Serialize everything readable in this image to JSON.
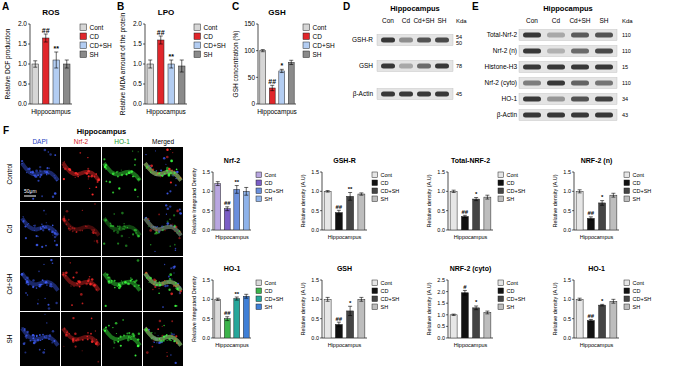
{
  "chart_data": [
    {
      "type": "bar",
      "panel_label": "A",
      "title": "ROS",
      "y_label": "Relative DCF production",
      "x_label": "Hippocampus",
      "categories": [
        "Cont",
        "CD",
        "CD+SH",
        "SH"
      ],
      "values": [
        1.0,
        1.65,
        1.1,
        1.0
      ],
      "errors": [
        0.08,
        0.1,
        0.2,
        0.1
      ],
      "significance": [
        null,
        "##",
        "**",
        null
      ],
      "colors": [
        "#d6d6d6",
        "#e0262b",
        "#b3cdf2",
        "#8a8a8a"
      ],
      "ylim": [
        0,
        2
      ],
      "yticks": [
        {
          "value": 0,
          "label": "0.0"
        },
        0.5,
        {
          "value": 1,
          "label": "1.0"
        },
        1.5,
        {
          "value": 2,
          "label": "2.0"
        }
      ],
      "legend": "right",
      "tick_labels": "y",
      "grid": false
    },
    {
      "type": "bar",
      "panel_label": "B",
      "title": "LPO",
      "y_label": "Relative MDA amount of the protein",
      "x_label": "Hippocampus",
      "categories": [
        "Cont",
        "CD",
        "CD+SH",
        "SH"
      ],
      "values": [
        1.0,
        1.6,
        1.0,
        0.95
      ],
      "errors": [
        0.1,
        0.1,
        0.1,
        0.15
      ],
      "significance": [
        null,
        "##",
        "**",
        null
      ],
      "colors": [
        "#d6d6d6",
        "#e0262b",
        "#b3cdf2",
        "#8a8a8a"
      ],
      "ylim": [
        0,
        2
      ],
      "yticks": [
        {
          "value": 0,
          "label": "0.0"
        },
        0.5,
        {
          "value": 1,
          "label": "1.0"
        },
        1.5,
        {
          "value": 2,
          "label": "2.0"
        }
      ],
      "legend": "right",
      "tick_labels": "y",
      "grid": false
    },
    {
      "type": "bar",
      "panel_label": "C",
      "title": "GSH",
      "y_label": "GSH concentration (%)",
      "x_label": "Hippocampus",
      "categories": [
        "Cont",
        "CD",
        "CD+SH",
        "SH"
      ],
      "values": [
        100,
        30,
        62,
        78
      ],
      "errors": [
        2,
        5,
        3,
        4
      ],
      "significance": [
        null,
        "##",
        "*",
        null
      ],
      "colors": [
        "#d6d6d6",
        "#e0262b",
        "#b3cdf2",
        "#8a8a8a"
      ],
      "ylim": [
        0,
        150
      ],
      "yticks": [
        0,
        50,
        100,
        150
      ],
      "legend": "right",
      "tick_labels": "y",
      "grid": false
    },
    {
      "type": "bar",
      "title": "Nrf-2",
      "y_label": "Relative Integrated Density",
      "x_label": "Hippocampus",
      "categories": [
        "Cont",
        "CD",
        "CD+SH",
        "SH"
      ],
      "values": [
        1.2,
        0.55,
        1.05,
        1.0
      ],
      "errors": [
        0.05,
        0.05,
        0.1,
        0.1
      ],
      "significance": [
        null,
        "##",
        "**",
        null
      ],
      "colors": [
        "#b8a6e0",
        "#7b5ec6",
        "#6a8fdc",
        "#8fb3ea"
      ],
      "ylim": [
        0,
        1.5
      ],
      "yticks": [
        {
          "value": 0,
          "label": "0.0"
        },
        0.5,
        {
          "value": 1,
          "label": "1.0"
        },
        1.5
      ],
      "legend": "right",
      "tick_labels": "y",
      "grid": false
    },
    {
      "type": "bar",
      "title": "HO-1",
      "y_label": "Relative Integrated Density",
      "x_label": "Hippocampus",
      "categories": [
        "Cont",
        "CD",
        "CD+SH",
        "SH"
      ],
      "values": [
        1.0,
        0.5,
        1.02,
        1.08
      ],
      "errors": [
        0.03,
        0.05,
        0.04,
        0.05
      ],
      "significance": [
        null,
        "##",
        "**",
        null
      ],
      "colors": [
        "#d9d9d9",
        "#3cb44b",
        "#26a69a",
        "#3f7fd6"
      ],
      "ylim": [
        0,
        1.5
      ],
      "yticks": [
        {
          "value": 0,
          "label": "0.0"
        },
        0.5,
        {
          "value": 1,
          "label": "1.0"
        },
        1.5
      ],
      "legend": "right",
      "tick_labels": "y",
      "grid": false
    },
    {
      "type": "bar",
      "title": "GSH-R",
      "y_label": "Relative density (A.U)",
      "x_label": "Hippocampus",
      "categories": [
        "Cont",
        "CD",
        "CD+SH",
        "SH"
      ],
      "values": [
        1.0,
        0.45,
        0.87,
        0.93
      ],
      "errors": [
        0.02,
        0.06,
        0.1,
        0.03
      ],
      "significance": [
        null,
        "##",
        "**",
        null
      ],
      "colors": [
        "#e6e6e6",
        "#111111",
        "#444444",
        "#bdbdbd"
      ],
      "ylim": [
        0,
        1.5
      ],
      "yticks": [
        {
          "value": 0,
          "label": "0.0"
        },
        0.5,
        {
          "value": 1,
          "label": "1.0"
        },
        1.5
      ],
      "legend": "right",
      "tick_labels": "y",
      "grid": false
    },
    {
      "type": "bar",
      "title": "Total-NRF-2",
      "y_label": "Relative density (A.U)",
      "x_label": "Hippocampus",
      "categories": [
        "Cont",
        "CD",
        "CD+SH",
        "SH"
      ],
      "values": [
        1.0,
        0.35,
        0.8,
        0.85
      ],
      "errors": [
        0.03,
        0.03,
        0.04,
        0.05
      ],
      "significance": [
        null,
        "##",
        "*",
        null
      ],
      "colors": [
        "#e6e6e6",
        "#111111",
        "#444444",
        "#bdbdbd"
      ],
      "ylim": [
        0,
        1.5
      ],
      "yticks": [
        {
          "value": 0,
          "label": "0.0"
        },
        0.5,
        {
          "value": 1,
          "label": "1.0"
        },
        1.5
      ],
      "legend": "right",
      "tick_labels": "y",
      "grid": false
    },
    {
      "type": "bar",
      "title": "NRF-2 (n)",
      "y_label": "Relative density (A.U)",
      "x_label": "Hippocampus",
      "categories": [
        "Cont",
        "CD",
        "CD+SH",
        "SH"
      ],
      "values": [
        1.0,
        0.3,
        0.7,
        0.9
      ],
      "errors": [
        0.04,
        0.04,
        0.06,
        0.05
      ],
      "significance": [
        null,
        "##",
        "*",
        null
      ],
      "colors": [
        "#e6e6e6",
        "#111111",
        "#444444",
        "#bdbdbd"
      ],
      "ylim": [
        0,
        1.5
      ],
      "yticks": [
        {
          "value": 0,
          "label": "0.0"
        },
        0.5,
        {
          "value": 1,
          "label": "1.0"
        },
        1.5
      ],
      "legend": "right",
      "tick_labels": "y",
      "grid": false
    },
    {
      "type": "bar",
      "title": "GSH",
      "y_label": "Relative density (A.U)",
      "x_label": "Hippocampus",
      "categories": [
        "Cont",
        "CD",
        "CD+SH",
        "SH"
      ],
      "values": [
        1.0,
        0.35,
        0.7,
        1.0
      ],
      "errors": [
        0.05,
        0.06,
        0.12,
        0.05
      ],
      "significance": [
        null,
        "##",
        "*",
        null
      ],
      "colors": [
        "#e6e6e6",
        "#111111",
        "#444444",
        "#bdbdbd"
      ],
      "ylim": [
        0,
        1.5
      ],
      "yticks": [
        {
          "value": 0,
          "label": "0.0"
        },
        0.5,
        {
          "value": 1,
          "label": "1.0"
        },
        1.5
      ],
      "legend": "right",
      "tick_labels": "y",
      "grid": false
    },
    {
      "type": "bar",
      "title": "NRF-2 (cyto)",
      "y_label": "Relative density (A.U)",
      "x_label": "Hippocampus",
      "categories": [
        "Cont",
        "CD",
        "CD+SH",
        "SH"
      ],
      "values": [
        1.0,
        1.95,
        1.3,
        1.1
      ],
      "errors": [
        0.03,
        0.1,
        0.08,
        0.06
      ],
      "significance": [
        null,
        "#",
        "*",
        null
      ],
      "colors": [
        "#e6e6e6",
        "#111111",
        "#444444",
        "#bdbdbd"
      ],
      "ylim": [
        0,
        2.5
      ],
      "yticks": [
        {
          "value": 0,
          "label": "0.0"
        },
        0.5,
        {
          "value": 1,
          "label": "1.0"
        },
        1.5,
        {
          "value": 2,
          "label": "2.0"
        },
        2.5
      ],
      "legend": "right",
      "tick_labels": "y",
      "grid": false
    },
    {
      "type": "bar",
      "title": "HO-1",
      "y_label": "Relative density (A.U)",
      "x_label": "Hippocampus",
      "categories": [
        "Cont",
        "CD",
        "CD+SH",
        "SH"
      ],
      "values": [
        1.0,
        0.45,
        0.85,
        0.95
      ],
      "errors": [
        0.03,
        0.03,
        0.02,
        0.05
      ],
      "significance": [
        null,
        "##",
        "*",
        null
      ],
      "colors": [
        "#e6e6e6",
        "#111111",
        "#444444",
        "#bdbdbd"
      ],
      "ylim": [
        0,
        1.5
      ],
      "yticks": [
        {
          "value": 0,
          "label": "0.0"
        },
        0.5,
        {
          "value": 1,
          "label": "1.0"
        },
        1.5
      ],
      "legend": "right",
      "tick_labels": "y",
      "grid": false
    }
  ],
  "blots": [
    {
      "panel_label": "D",
      "title": "Hippocampus",
      "lanes": [
        "Con",
        "Cd",
        "Cd+SH",
        "SH"
      ],
      "unit": "Kda",
      "rows": [
        {
          "label": "GSH-R",
          "kda": [
            "54",
            "50"
          ],
          "band_density": [
            1.0,
            0.5,
            0.85,
            0.9
          ]
        },
        {
          "label": "GSH",
          "kda": [
            "78"
          ],
          "band_density": [
            1.0,
            0.35,
            0.7,
            1.0
          ]
        },
        {
          "label": "β-Actin",
          "kda": [
            "45"
          ],
          "band_density": [
            1.0,
            1.0,
            1.0,
            1.0
          ]
        }
      ]
    },
    {
      "panel_label": "E",
      "title": "Hippocampus",
      "lanes": [
        "Con",
        "Cd",
        "Cd+SH",
        "SH"
      ],
      "unit": "Kda",
      "rows": [
        {
          "label": "Total-Nrf-2",
          "kda": [
            "110"
          ],
          "band_density": [
            1.0,
            0.35,
            0.8,
            0.85
          ]
        },
        {
          "label": "Nrf-2 (n)",
          "kda": [
            "110"
          ],
          "band_density": [
            1.0,
            0.3,
            0.7,
            0.9
          ]
        },
        {
          "label": "Histone-H3",
          "kda": [
            "15"
          ],
          "band_density": [
            1.0,
            1.0,
            1.0,
            1.0
          ]
        },
        {
          "label": "Nrf-2 (cyto)",
          "kda": [
            "110"
          ],
          "band_density": [
            0.6,
            1.0,
            0.75,
            0.65
          ]
        },
        {
          "label": "HO-1",
          "kda": [
            "34"
          ],
          "band_density": [
            1.0,
            0.45,
            0.85,
            0.95
          ]
        },
        {
          "label": "β-Actin",
          "kda": [
            "43"
          ],
          "band_density": [
            1.0,
            1.0,
            1.0,
            1.0
          ]
        }
      ]
    }
  ],
  "images": {
    "panel_label": "F",
    "title": "Hippocampus",
    "columns": [
      "DAPI",
      "Nrf-2",
      "HO-1",
      "Merged"
    ],
    "rows": [
      "Control",
      "Cd",
      "Cd+SH",
      "SH"
    ],
    "scale_bar": "50μm"
  }
}
